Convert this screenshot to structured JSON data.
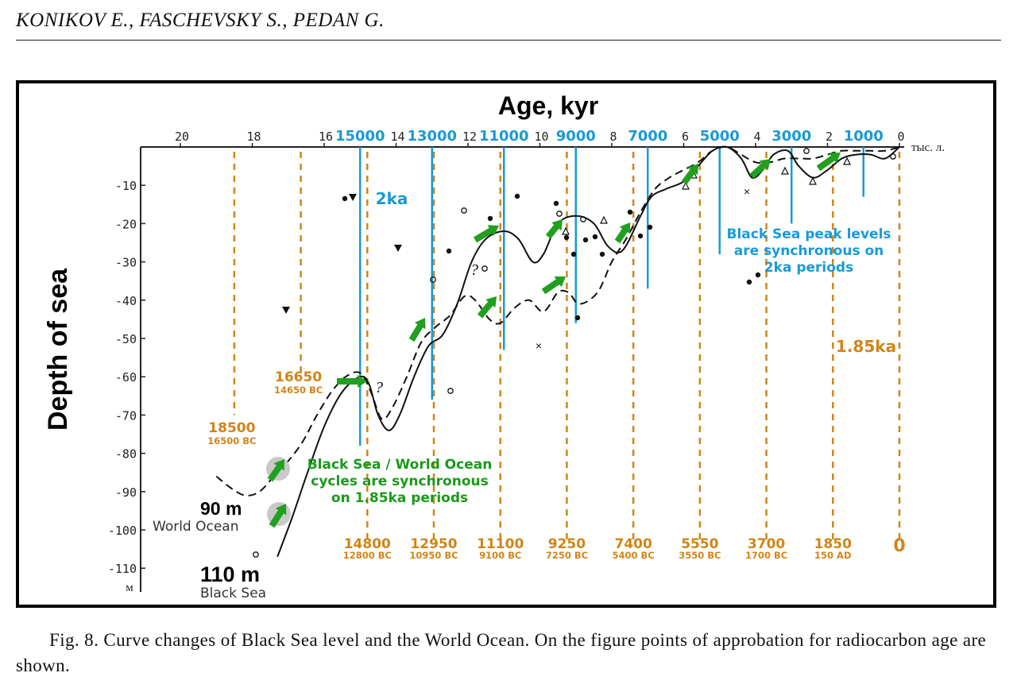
{
  "header": {
    "authors": "KONIKOV E., FASCHEVSKY S., PEDAN G."
  },
  "caption": "Fig. 8. Curve changes of Black Sea level and the World Ocean. On the figure points of approbation for radiocarbon age are shown.",
  "colors": {
    "blue": "#1a9ad6",
    "orange": "#d08518",
    "green": "#1a9a1a",
    "arrow": "#1fa01f"
  },
  "chart_data": {
    "type": "line",
    "title": "Age, kyr",
    "ylabel": "Depth of sea",
    "xlim": [
      21.5,
      0
    ],
    "ylim": [
      -112,
      0
    ],
    "x_ticks": [
      "20",
      "18",
      "16",
      "14",
      "12",
      "10",
      "8",
      "6",
      "4",
      "2",
      "0"
    ],
    "x_unit": "тыс. л.",
    "y_ticks": [
      "-10",
      "-20",
      "-30",
      "-40",
      "-50",
      "-60",
      "-70",
      "-80",
      "-90",
      "-100",
      "-110"
    ],
    "y_unit": "м",
    "blue_lines": {
      "label": "2ka",
      "values": [
        {
          "x": 15.0,
          "label": "15000",
          "depth": -78
        },
        {
          "x": 13.0,
          "label": "13000",
          "depth": -66
        },
        {
          "x": 11.0,
          "label": "11000",
          "depth": -53
        },
        {
          "x": 9.0,
          "label": "9000",
          "depth": -46
        },
        {
          "x": 7.0,
          "label": "7000",
          "depth": -37
        },
        {
          "x": 5.0,
          "label": "5000",
          "depth": -28
        },
        {
          "x": 3.0,
          "label": "3000",
          "depth": -20
        },
        {
          "x": 1.0,
          "label": "1000",
          "depth": -13
        }
      ]
    },
    "orange_lines": {
      "label": "1.85ka",
      "values": [
        {
          "x": 18.5,
          "label": "18500",
          "sublabel": "16500 BC",
          "depth": -70
        },
        {
          "x": 16.65,
          "label": "16650",
          "sublabel": "14650 BC",
          "depth": -60
        },
        {
          "x": 14.8,
          "label": "14800",
          "sublabel": "12800 BC",
          "depth": -103
        },
        {
          "x": 12.95,
          "label": "12950",
          "sublabel": "10950 BC",
          "depth": -103
        },
        {
          "x": 11.1,
          "label": "11100",
          "sublabel": "9100 BC",
          "depth": -103
        },
        {
          "x": 9.25,
          "label": "9250",
          "sublabel": "7250 BC",
          "depth": -103
        },
        {
          "x": 7.4,
          "label": "7400",
          "sublabel": "5400 BC",
          "depth": -103
        },
        {
          "x": 5.55,
          "label": "5550",
          "sublabel": "3550 BC",
          "depth": -103
        },
        {
          "x": 3.7,
          "label": "3700",
          "sublabel": "1700 BC",
          "depth": -103
        },
        {
          "x": 1.85,
          "label": "1850",
          "sublabel": "150 AD",
          "depth": -103
        },
        {
          "x": 0.0,
          "label": "0",
          "sublabel": "",
          "depth": -103
        }
      ]
    },
    "series": [
      {
        "name": "Black Sea",
        "style": "solid",
        "label_value": "110 m",
        "points": [
          [
            17.3,
            -107
          ],
          [
            16.9,
            -97
          ],
          [
            16.5,
            -86
          ],
          [
            16.0,
            -73
          ],
          [
            15.5,
            -64
          ],
          [
            15.0,
            -60
          ],
          [
            14.75,
            -62
          ],
          [
            14.5,
            -70
          ],
          [
            14.2,
            -74
          ],
          [
            13.9,
            -70
          ],
          [
            13.5,
            -60
          ],
          [
            13.1,
            -52
          ],
          [
            12.7,
            -49
          ],
          [
            12.3,
            -41
          ],
          [
            11.9,
            -30
          ],
          [
            11.5,
            -24
          ],
          [
            11.0,
            -22
          ],
          [
            10.6,
            -24
          ],
          [
            10.2,
            -30
          ],
          [
            9.9,
            -28
          ],
          [
            9.5,
            -20
          ],
          [
            9.0,
            -18
          ],
          [
            8.5,
            -20
          ],
          [
            8.1,
            -26
          ],
          [
            7.7,
            -27
          ],
          [
            7.2,
            -18
          ],
          [
            6.9,
            -13
          ],
          [
            6.5,
            -11
          ],
          [
            6.0,
            -9
          ],
          [
            5.6,
            -5
          ],
          [
            5.2,
            -1
          ],
          [
            4.8,
            0
          ],
          [
            4.4,
            -3
          ],
          [
            4.1,
            -8
          ],
          [
            3.8,
            -6
          ],
          [
            3.5,
            -2
          ],
          [
            3.1,
            -1
          ],
          [
            2.8,
            -5
          ],
          [
            2.4,
            -8
          ],
          [
            2.0,
            -6
          ],
          [
            1.6,
            -3
          ],
          [
            1.2,
            -2
          ],
          [
            0.8,
            -2
          ],
          [
            0.4,
            -3
          ],
          [
            0.0,
            0
          ]
        ]
      },
      {
        "name": "World Ocean",
        "style": "dashed",
        "label_value": "90 m",
        "points": [
          [
            19.0,
            -86
          ],
          [
            18.6,
            -89
          ],
          [
            18.2,
            -91
          ],
          [
            17.8,
            -90
          ],
          [
            17.4,
            -86
          ],
          [
            17.0,
            -82
          ],
          [
            16.6,
            -77
          ],
          [
            16.2,
            -70
          ],
          [
            15.8,
            -64
          ],
          [
            15.4,
            -60
          ],
          [
            15.0,
            -59
          ],
          [
            14.7,
            -64
          ],
          [
            14.4,
            -71
          ],
          [
            14.1,
            -68
          ],
          [
            13.7,
            -60
          ],
          [
            13.3,
            -51
          ],
          [
            12.9,
            -47
          ],
          [
            12.5,
            -44
          ],
          [
            12.1,
            -39
          ],
          [
            11.8,
            -40
          ],
          [
            11.4,
            -45
          ],
          [
            11.1,
            -46
          ],
          [
            10.7,
            -42
          ],
          [
            10.3,
            -40
          ],
          [
            9.9,
            -43
          ],
          [
            9.5,
            -38
          ],
          [
            9.2,
            -38
          ],
          [
            8.9,
            -41
          ],
          [
            8.4,
            -38
          ],
          [
            8.0,
            -30
          ],
          [
            7.6,
            -24
          ],
          [
            7.2,
            -17
          ],
          [
            6.8,
            -11
          ],
          [
            6.4,
            -8
          ],
          [
            6.0,
            -6
          ],
          [
            5.6,
            -4
          ],
          [
            5.2,
            -1
          ],
          [
            4.8,
            0
          ],
          [
            4.4,
            -2
          ],
          [
            4.0,
            -4
          ],
          [
            3.6,
            -4
          ],
          [
            3.2,
            -3
          ],
          [
            2.8,
            -3
          ],
          [
            2.4,
            -3
          ],
          [
            2.0,
            -2
          ],
          [
            1.6,
            -1
          ],
          [
            1.2,
            -1
          ],
          [
            0.8,
            -1
          ],
          [
            0.4,
            -1
          ],
          [
            0.0,
            0
          ]
        ]
      }
    ],
    "annotations": {
      "black_sea_label": "Black Sea",
      "world_ocean_label": "World Ocean",
      "sync_cycles": [
        "Black Sea / World Ocean",
        "cycles are synchronous",
        "on 1.85ka periods"
      ],
      "peak_levels": [
        "Black Sea peak levels",
        "are synchronous on",
        "2ka periods"
      ],
      "question_marks": [
        "?",
        "?"
      ]
    }
  }
}
